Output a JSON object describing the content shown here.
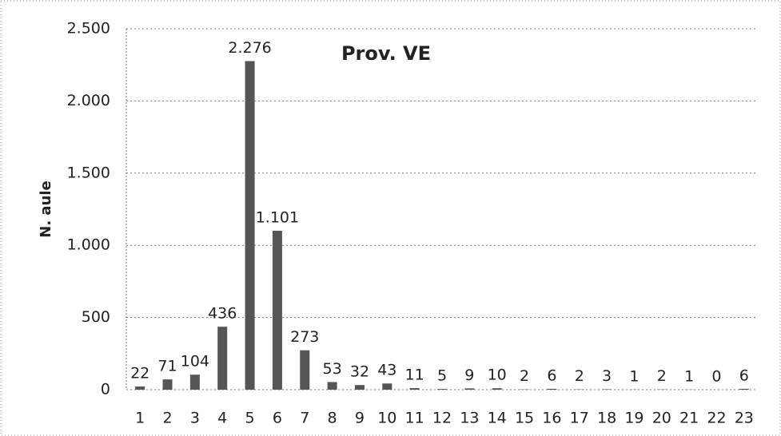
{
  "chart_data": {
    "type": "bar",
    "title": "Prov. VE",
    "y_label": "N. aule",
    "categories": [
      "1",
      "2",
      "3",
      "4",
      "5",
      "6",
      "7",
      "8",
      "9",
      "10",
      "11",
      "12",
      "13",
      "14",
      "15",
      "16",
      "17",
      "18",
      "19",
      "20",
      "21",
      "22",
      "23"
    ],
    "values": [
      22,
      71,
      104,
      436,
      2276,
      1101,
      273,
      53,
      32,
      43,
      11,
      5,
      9,
      10,
      2,
      6,
      2,
      3,
      1,
      2,
      1,
      0,
      6
    ],
    "value_labels": [
      "22",
      "71",
      "104",
      "436",
      "2.276",
      "1.101",
      "273",
      "53",
      "32",
      "43",
      "11",
      "5",
      "9",
      "10",
      "2",
      "6",
      "2",
      "3",
      "1",
      "2",
      "1",
      "0",
      "6"
    ],
    "color": "#555555",
    "ylim": [
      0,
      2500
    ],
    "yticks": [
      0,
      500,
      {
        "value": 1000,
        "label": "1.000"
      },
      {
        "value": 1500,
        "label": "1.500"
      },
      {
        "value": 2000,
        "label": "2.000"
      },
      {
        "value": 2500,
        "label": "2.500"
      }
    ],
    "grid": true
  }
}
